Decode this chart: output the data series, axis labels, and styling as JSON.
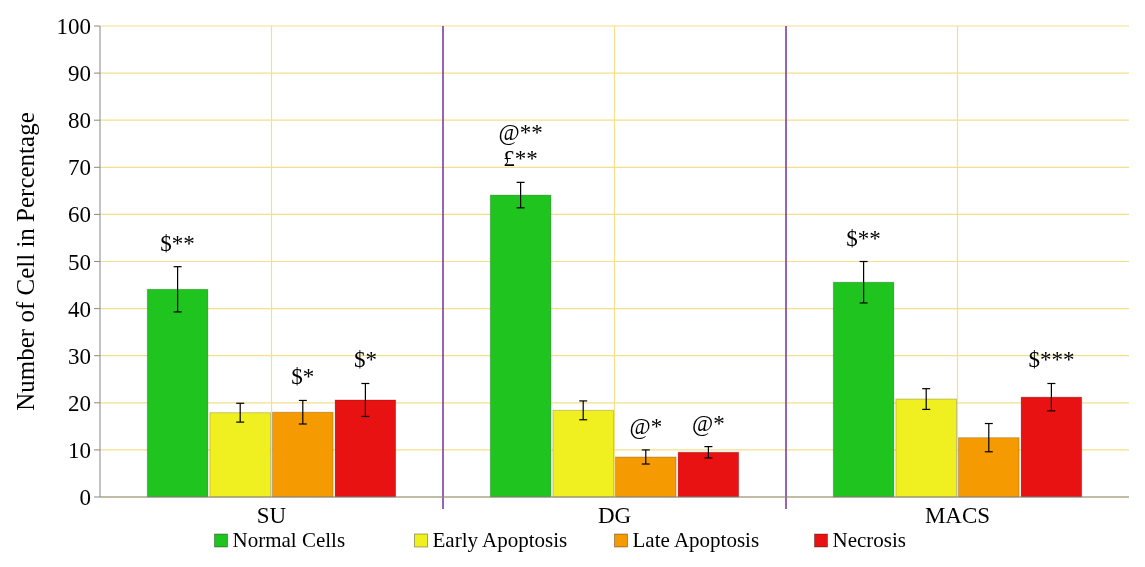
{
  "chart_data": {
    "type": "bar",
    "ylabel": "Number of Cell in Percentage",
    "categories": [
      "SU",
      "DG",
      "MACS"
    ],
    "series": [
      {
        "name": "Normal Cells",
        "color": "#1fc41f",
        "values": [
          44.1,
          64.1,
          45.6
        ],
        "errors": [
          4.8,
          2.7,
          4.4
        ]
      },
      {
        "name": "Early Apoptosis",
        "color": "#f0f020",
        "values": [
          17.9,
          18.4,
          20.8
        ],
        "errors": [
          2,
          2,
          2.2
        ]
      },
      {
        "name": "Late Apoptosis",
        "color": "#f59a00",
        "values": [
          18,
          8.5,
          12.6
        ],
        "errors": [
          2.5,
          1.5,
          3
        ]
      },
      {
        "name": "Necrosis",
        "color": "#e81212",
        "values": [
          20.6,
          9.5,
          21.2
        ],
        "errors": [
          3.5,
          1.2,
          2.9
        ]
      }
    ],
    "ylim": [
      0,
      100
    ],
    "yticks": [
      0,
      10,
      20,
      30,
      40,
      50,
      60,
      70,
      80,
      90,
      100
    ],
    "grid": true,
    "legend": "bottom",
    "annotations": [
      "$**",
      "$*",
      "$*",
      "@**",
      "£**",
      "@*",
      "@*",
      "$**",
      "$***"
    ]
  }
}
